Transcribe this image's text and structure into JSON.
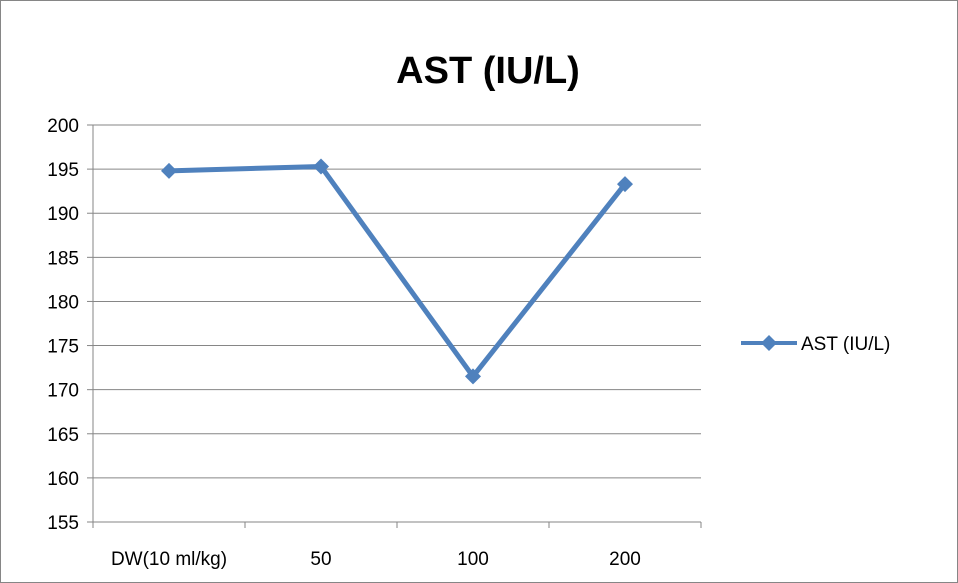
{
  "chart_data": {
    "type": "line",
    "title": "AST (IU/L)",
    "categories": [
      "DW(10 ml/kg)",
      "50",
      "100",
      "200"
    ],
    "series": [
      {
        "name": "AST (IU/L)",
        "values": [
          194.8,
          195.3,
          171.5,
          193.3
        ],
        "color": "#4f81bd",
        "marker": "diamond"
      }
    ],
    "yticks": [
      "155",
      "160",
      "165",
      "170",
      "175",
      "180",
      "185",
      "190",
      "195",
      "200"
    ],
    "ylim": [
      155,
      200
    ],
    "grid": true,
    "legend_position": "right"
  }
}
